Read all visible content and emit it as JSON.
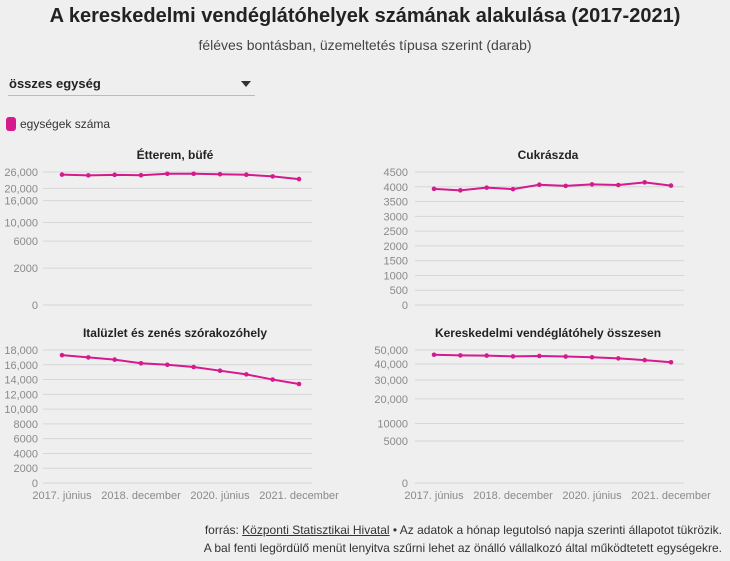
{
  "title": "A kereskedelmi vendéglátóhelyek számának alakulása (2017-2021)",
  "subtitle": "féléves bontásban, üzemeltetés típusa szerint (darab)",
  "dropdown": {
    "selected": "összes egység"
  },
  "legend": {
    "label": "egységek száma",
    "color": "#d6198d"
  },
  "footer": {
    "source_prefix": "forrás: ",
    "source_link": "Központi Statisztikai Hivatal",
    "source_suffix": " • Az adatok a hónap legutolsó napja szerinti állapotot tükrözik.",
    "line2": "A bal fenti legördülő menüt lenyitva szűrni lehet az önálló vállalkozó által működtetett egységekre."
  },
  "chart_data": [
    {
      "type": "line",
      "title": "Étterem, büfé",
      "x_count": 10,
      "x_tick_labels": [],
      "y_ticks": [
        0,
        2000,
        6000,
        10000,
        16000,
        20000,
        26000
      ],
      "y_tick_labels": [
        "0",
        "2000",
        "6000",
        "10,000",
        "16,000",
        "20,000",
        "26,000"
      ],
      "ylim": [
        0,
        26000
      ],
      "y_scale": "sqrt",
      "grid": true,
      "series": [
        {
          "values": [
            25000,
            24700,
            24900,
            24750,
            25300,
            25300,
            25150,
            24950,
            24300,
            23300
          ]
        }
      ]
    },
    {
      "type": "line",
      "title": "Cukrászda",
      "x_count": 10,
      "x_tick_labels": [],
      "y_ticks": [
        0,
        500,
        1000,
        1500,
        2000,
        2500,
        3000,
        3500,
        4000,
        4500
      ],
      "y_tick_labels": [
        "0",
        "500",
        "1000",
        "1500",
        "2000",
        "2500",
        "3000",
        "3500",
        "4000",
        "4500"
      ],
      "ylim": [
        0,
        4500
      ],
      "y_scale": "linear",
      "grid": true,
      "series": [
        {
          "values": [
            3930,
            3880,
            3970,
            3920,
            4070,
            4030,
            4080,
            4060,
            4150,
            4040
          ]
        }
      ]
    },
    {
      "type": "line",
      "title": "Italüzlet és zenés szórakozóhely",
      "x_count": 10,
      "x_tick_labels": [
        "2017. június",
        "2018. december",
        "2020. június",
        "2021. december"
      ],
      "x_tick_positions": [
        0,
        3,
        6,
        9
      ],
      "y_ticks": [
        0,
        2000,
        4000,
        6000,
        8000,
        10000,
        12000,
        14000,
        16000,
        18000
      ],
      "y_tick_labels": [
        "0",
        "2000",
        "4000",
        "6000",
        "8000",
        "10,000",
        "12,000",
        "14,000",
        "16,000",
        "18,000"
      ],
      "ylim": [
        0,
        18000
      ],
      "y_scale": "linear",
      "grid": true,
      "series": [
        {
          "values": [
            17300,
            17000,
            16700,
            16200,
            16000,
            15700,
            15200,
            14700,
            14000,
            13400
          ]
        }
      ]
    },
    {
      "type": "line",
      "title": "Kereskedelmi vendéglátóhely összesen",
      "x_count": 10,
      "x_tick_labels": [
        "2017. június",
        "2018. december",
        "2020. június",
        "2021. december"
      ],
      "x_tick_positions": [
        0,
        3,
        6,
        9
      ],
      "y_ticks": [
        0,
        5000,
        10000,
        20000,
        30000,
        40000,
        50000
      ],
      "y_tick_labels": [
        "0",
        "5000",
        "10000",
        "20,000",
        "30,000",
        "40,000",
        "50,000"
      ],
      "ylim": [
        0,
        50000
      ],
      "y_scale": "sqrt",
      "grid": true,
      "series": [
        {
          "values": [
            46500,
            46000,
            45900,
            45300,
            45600,
            45200,
            44700,
            43900,
            42700,
            41200
          ]
        }
      ]
    }
  ]
}
